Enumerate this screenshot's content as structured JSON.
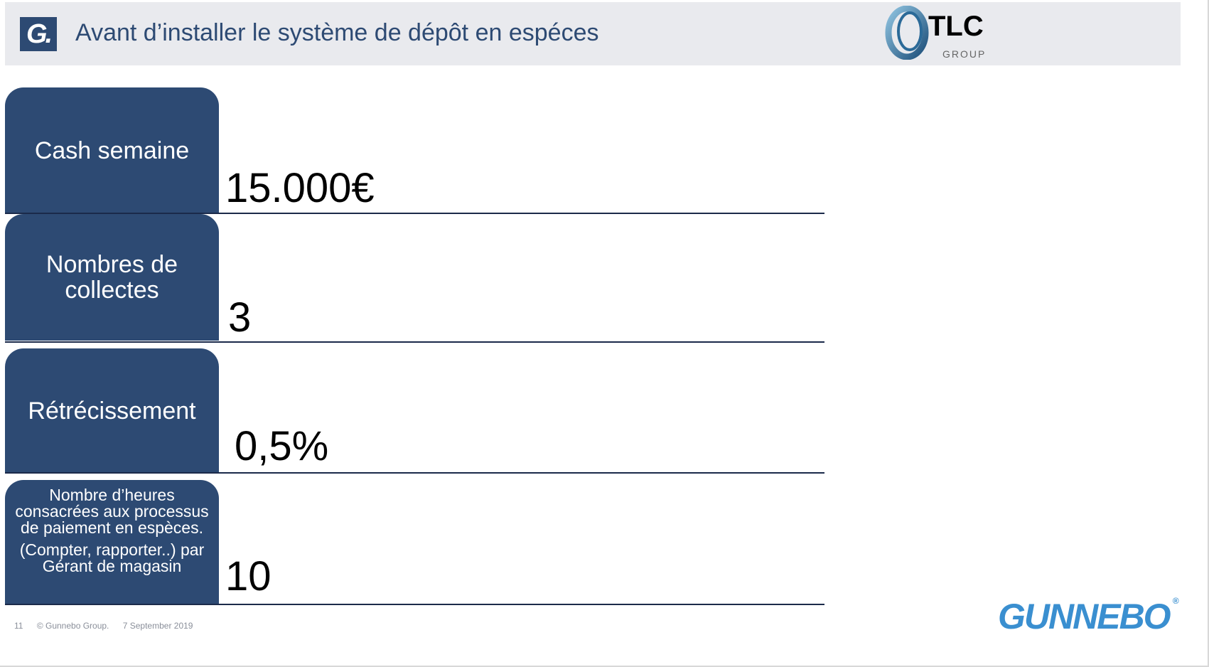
{
  "header": {
    "logo_text": "G.",
    "title": "Avant d’installer le système de dépôt en espéces",
    "partner_logo": {
      "text": "TLC",
      "subtext": "GROUP"
    }
  },
  "rows": [
    {
      "label": "Cash semaine",
      "value": "15.000€"
    },
    {
      "label": "Nombres de collectes",
      "value": "3"
    },
    {
      "label": "Rétrécissement",
      "value": "0,5%"
    },
    {
      "label": "Nombre d’heures consacrées aux processus de paiement en espèces.",
      "sublabel": "(Compter, rapporter..) par Gérant de magasin",
      "value": "10"
    }
  ],
  "footer": {
    "page": "11",
    "copyright": "© Gunnebo Group.",
    "date": "7 September 2019"
  },
  "brand_logo": "GUNNEBO",
  "colors": {
    "primary": "#2d4a73",
    "header_bg": "#e9eaee",
    "brand": "#3a8fd0"
  }
}
